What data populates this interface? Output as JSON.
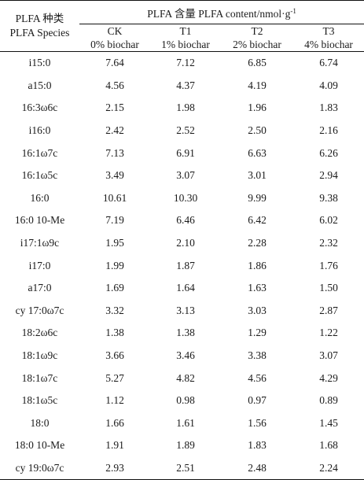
{
  "table": {
    "header": {
      "species_line1": "PLFA 种类",
      "species_line2": "PLFA Species",
      "group_label": "PLFA 含量 PLFA content/nmol·g",
      "group_label_sup": "-1",
      "columns": [
        {
          "code": "CK",
          "treatment": "0% biochar"
        },
        {
          "code": "T1",
          "treatment": "1% biochar"
        },
        {
          "code": "T2",
          "treatment": "2% biochar"
        },
        {
          "code": "T3",
          "treatment": "4% biochar"
        }
      ]
    },
    "rows": [
      {
        "species": "i15:0",
        "values": [
          "7.64",
          "7.12",
          "6.85",
          "6.74"
        ]
      },
      {
        "species": "a15:0",
        "values": [
          "4.56",
          "4.37",
          "4.19",
          "4.09"
        ]
      },
      {
        "species": "16:3ω6c",
        "values": [
          "2.15",
          "1.98",
          "1.96",
          "1.83"
        ]
      },
      {
        "species": "i16:0",
        "values": [
          "2.42",
          "2.52",
          "2.50",
          "2.16"
        ]
      },
      {
        "species": "16:1ω7c",
        "values": [
          "7.13",
          "6.91",
          "6.63",
          "6.26"
        ]
      },
      {
        "species": "16:1ω5c",
        "values": [
          "3.49",
          "3.07",
          "3.01",
          "2.94"
        ]
      },
      {
        "species": "16:0",
        "values": [
          "10.61",
          "10.30",
          "9.99",
          "9.38"
        ]
      },
      {
        "species": "16:0 10-Me",
        "values": [
          "7.19",
          "6.46",
          "6.42",
          "6.02"
        ]
      },
      {
        "species": "i17:1ω9c",
        "values": [
          "1.95",
          "2.10",
          "2.28",
          "2.32"
        ]
      },
      {
        "species": "i17:0",
        "values": [
          "1.99",
          "1.87",
          "1.86",
          "1.76"
        ]
      },
      {
        "species": "a17:0",
        "values": [
          "1.69",
          "1.64",
          "1.63",
          "1.50"
        ]
      },
      {
        "species": "cy 17:0ω7c",
        "values": [
          "3.32",
          "3.13",
          "3.03",
          "2.87"
        ]
      },
      {
        "species": "18:2ω6c",
        "values": [
          "1.38",
          "1.38",
          "1.29",
          "1.22"
        ]
      },
      {
        "species": "18:1ω9c",
        "values": [
          "3.66",
          "3.46",
          "3.38",
          "3.07"
        ]
      },
      {
        "species": "18:1ω7c",
        "values": [
          "5.27",
          "4.82",
          "4.56",
          "4.29"
        ]
      },
      {
        "species": "18:1ω5c",
        "values": [
          "1.12",
          "0.98",
          "0.97",
          "0.89"
        ]
      },
      {
        "species": "18:0",
        "values": [
          "1.66",
          "1.61",
          "1.56",
          "1.45"
        ]
      },
      {
        "species": "18:0 10-Me",
        "values": [
          "1.91",
          "1.89",
          "1.83",
          "1.68"
        ]
      },
      {
        "species": "cy 19:0ω7c",
        "values": [
          "2.93",
          "2.51",
          "2.48",
          "2.24"
        ]
      }
    ]
  }
}
